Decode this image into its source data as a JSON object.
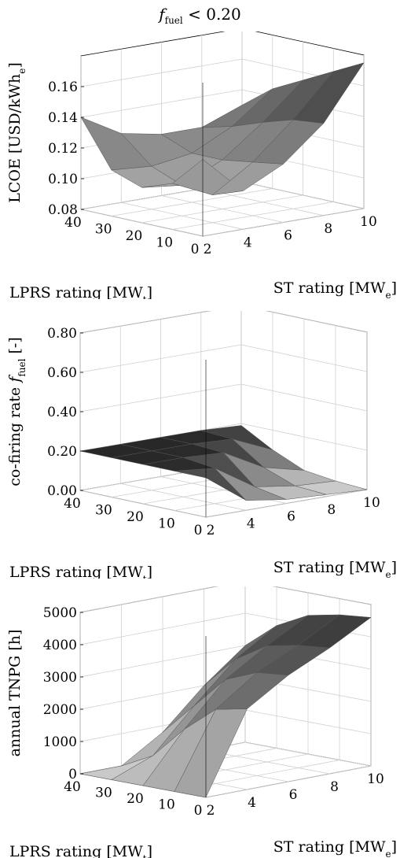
{
  "title": {
    "var": "f",
    "sub": "fuel",
    "rest": " < 0.20"
  },
  "chart_data": [
    {
      "type": "surface",
      "title": "",
      "xlabel": "ST rating [MW",
      "xlabel_sub": "e",
      "xlabel_end": "]",
      "ylabel": "LPRS rating [MW",
      "ylabel_sub": "t",
      "ylabel_end": "]",
      "zlabel": "LCOE [USD/kWh",
      "zlabel_sub": "e",
      "zlabel_end": "]",
      "x_ticks": [
        "2",
        "4",
        "6",
        "8",
        "10"
      ],
      "y_ticks": [
        "0",
        "10",
        "20",
        "30",
        "40"
      ],
      "z_ticks": [
        "0.08",
        "0.10",
        "0.12",
        "0.14",
        "0.16"
      ],
      "xlim": [
        2,
        10
      ],
      "ylim": [
        0,
        40
      ],
      "zlim": [
        0.08,
        0.18
      ],
      "x": [
        2,
        4,
        6,
        8,
        10
      ],
      "y": [
        0,
        10,
        20,
        30,
        40
      ],
      "z": [
        [
          0.13,
          0.105,
          0.118,
          0.14,
          0.175
        ],
        [
          0.11,
          0.098,
          0.115,
          0.138,
          0.165
        ],
        [
          0.103,
          0.1,
          0.112,
          0.132,
          0.155
        ],
        [
          0.11,
          0.108,
          0.112,
          0.125,
          0.145
        ],
        [
          0.14,
          0.125,
          0.12,
          0.12,
          0.13
        ]
      ],
      "shading": "gray"
    },
    {
      "type": "surface",
      "title": "",
      "xlabel": "ST rating [MW",
      "xlabel_sub": "e",
      "xlabel_end": "]",
      "ylabel": "LPRS rating [MW",
      "ylabel_sub": "t",
      "ylabel_end": "]",
      "zlabel": "co-firing rate ",
      "zlabel_var": "f",
      "zlabel_sub": "fuel",
      "zlabel_end": " [-]",
      "x_ticks": [
        "2",
        "4",
        "6",
        "8",
        "10"
      ],
      "y_ticks": [
        "0",
        "10",
        "20",
        "30",
        "40"
      ],
      "z_ticks": [
        "0.00",
        "0.20",
        "0.40",
        "0.60",
        "0.80"
      ],
      "xlim": [
        2,
        10
      ],
      "ylim": [
        0,
        40
      ],
      "zlim": [
        0,
        0.8
      ],
      "x": [
        2,
        4,
        6,
        8,
        10
      ],
      "y": [
        0,
        10,
        20,
        30,
        40
      ],
      "z": [
        [
          0.2,
          0.05,
          0.02,
          0.01,
          0.0
        ],
        [
          0.2,
          0.18,
          0.05,
          0.02,
          0.01
        ],
        [
          0.2,
          0.2,
          0.19,
          0.08,
          0.03
        ],
        [
          0.2,
          0.2,
          0.2,
          0.19,
          0.1
        ],
        [
          0.2,
          0.2,
          0.2,
          0.2,
          0.19
        ]
      ],
      "shading": "inverted"
    },
    {
      "type": "surface",
      "title": "",
      "xlabel": "ST rating [MW",
      "xlabel_sub": "e",
      "xlabel_end": "]",
      "ylabel": "LPRS rating [MW",
      "ylabel_sub": "t",
      "ylabel_end": "]",
      "zlabel": "annual TNPG [h]",
      "zlabel_sub": "",
      "zlabel_end": "",
      "x_ticks": [
        "2",
        "4",
        "6",
        "8",
        "10"
      ],
      "y_ticks": [
        "0",
        "10",
        "20",
        "30",
        "40"
      ],
      "z_ticks": [
        "0",
        "1000",
        "2000",
        "3000",
        "4000",
        "5000"
      ],
      "xlim": [
        2,
        10
      ],
      "ylim": [
        0,
        40
      ],
      "zlim": [
        0,
        5000
      ],
      "x": [
        2,
        4,
        6,
        8,
        10
      ],
      "y": [
        0,
        10,
        20,
        30,
        40
      ],
      "z": [
        [
          0,
          2500,
          3300,
          3900,
          4600
        ],
        [
          0,
          2300,
          3200,
          3800,
          4500
        ],
        [
          0,
          1500,
          2800,
          3600,
          4300
        ],
        [
          0,
          500,
          1800,
          3000,
          3800
        ],
        [
          0,
          0,
          800,
          2000,
          3000
        ]
      ],
      "shading": "gray"
    }
  ]
}
